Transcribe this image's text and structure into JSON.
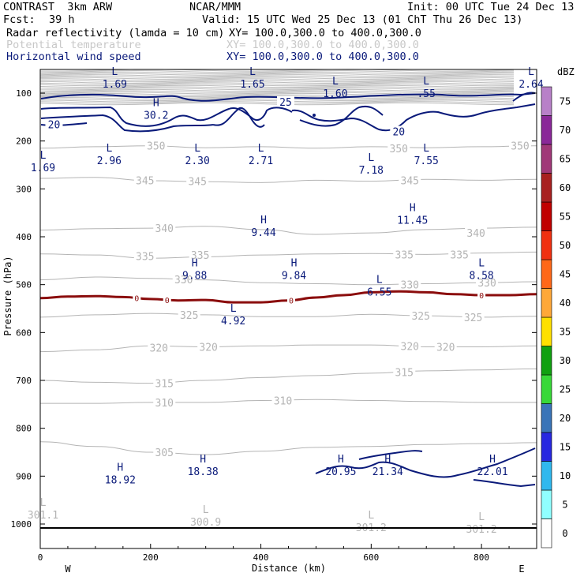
{
  "header": {
    "left1": "CONTRAST  3km ARW",
    "center1": "NCAR/MMM",
    "right1": "Init: 00 UTC Tue 24 Dec 13",
    "fcst_label": "Fcst:",
    "fcst_value": "39 h",
    "valid": "Valid: 15 UTC Wed 25 Dec 13 (01 ChT Thu 26 Dec 13)",
    "fields": [
      {
        "name": "Radar reflectivity (lamda = 10 cm)",
        "xy": "XY= 100.0,300.0 to 400.0,300.0",
        "color": "#000000"
      },
      {
        "name": "Potential temperature",
        "xy": "XY= 100.0,300.0 to 400.0,300.0",
        "color": "#c8c8c8"
      },
      {
        "name": "Horizontal wind speed",
        "xy": "XY= 100.0,300.0 to 400.0,300.0",
        "color": "#0a1a7a"
      }
    ]
  },
  "chart_data": {
    "type": "cross-section",
    "xlabel": "Distance (km)",
    "ylabel": "Pressure (hPa)",
    "xlim": [
      0,
      900
    ],
    "ylim": [
      1040,
      50
    ],
    "xticks": [
      0,
      200,
      400,
      600,
      800
    ],
    "yticks": [
      100,
      200,
      300,
      400,
      500,
      600,
      700,
      800,
      900,
      1000
    ],
    "x_end_labels": {
      "left": "W",
      "right": "E"
    },
    "colorbar": {
      "unit": "dBZ",
      "levels": [
        0,
        5,
        10,
        15,
        20,
        25,
        30,
        35,
        40,
        45,
        50,
        55,
        60,
        65,
        70,
        75
      ],
      "colors": [
        "#ffffff",
        "#90ffff",
        "#30b8ee",
        "#2828e0",
        "#3a74b8",
        "#38d838",
        "#10a010",
        "#ffe000",
        "#ffa838",
        "#ff6818",
        "#f03010",
        "#c00000",
        "#a82020",
        "#a03878",
        "#8a2898",
        "#b880c8"
      ]
    },
    "theta_contours": [
      {
        "value": 350,
        "points": [
          [
            0,
            215
          ],
          [
            100,
            212
          ],
          [
            200,
            210
          ],
          [
            300,
            214
          ],
          [
            400,
            212
          ],
          [
            500,
            215
          ],
          [
            600,
            212
          ],
          [
            700,
            214
          ],
          [
            800,
            212
          ],
          [
            900,
            210
          ]
        ],
        "labels": [
          {
            "x": 210,
            "p": 210,
            "text": "350"
          },
          {
            "x": 650,
            "p": 215,
            "text": "350"
          },
          {
            "x": 870,
            "p": 210,
            "text": "350"
          }
        ]
      },
      {
        "value": 345,
        "points": [
          [
            0,
            278
          ],
          [
            100,
            276
          ],
          [
            200,
            283
          ],
          [
            300,
            285
          ],
          [
            400,
            287
          ],
          [
            500,
            282
          ],
          [
            600,
            284
          ],
          [
            700,
            280
          ],
          [
            800,
            282
          ],
          [
            900,
            280
          ]
        ],
        "labels": [
          {
            "x": 190,
            "p": 282,
            "text": "345"
          },
          {
            "x": 285,
            "p": 284,
            "text": "345"
          },
          {
            "x": 670,
            "p": 282,
            "text": "345"
          }
        ]
      },
      {
        "value": 340,
        "points": [
          [
            0,
            386
          ],
          [
            100,
            383
          ],
          [
            200,
            382
          ],
          [
            300,
            378
          ],
          [
            400,
            385
          ],
          [
            500,
            395
          ],
          [
            600,
            392
          ],
          [
            700,
            385
          ],
          [
            800,
            382
          ],
          [
            900,
            380
          ]
        ],
        "labels": [
          {
            "x": 225,
            "p": 382,
            "text": "340"
          },
          {
            "x": 790,
            "p": 392,
            "text": "340"
          }
        ]
      },
      {
        "value": 335,
        "points": [
          [
            0,
            436
          ],
          [
            100,
            438
          ],
          [
            200,
            445
          ],
          [
            300,
            442
          ],
          [
            400,
            438
          ],
          [
            500,
            436
          ],
          [
            600,
            435
          ],
          [
            700,
            437
          ],
          [
            800,
            434
          ],
          [
            900,
            432
          ]
        ],
        "labels": [
          {
            "x": 190,
            "p": 440,
            "text": "335"
          },
          {
            "x": 290,
            "p": 438,
            "text": "335"
          },
          {
            "x": 660,
            "p": 437,
            "text": "335"
          },
          {
            "x": 760,
            "p": 437,
            "text": "335"
          }
        ]
      },
      {
        "value": 330,
        "points": [
          [
            0,
            490
          ],
          [
            100,
            484
          ],
          [
            200,
            487
          ],
          [
            300,
            490
          ],
          [
            400,
            496
          ],
          [
            500,
            498
          ],
          [
            600,
            500
          ],
          [
            700,
            498
          ],
          [
            800,
            496
          ],
          [
            900,
            494
          ]
        ],
        "labels": [
          {
            "x": 260,
            "p": 489,
            "text": "330"
          },
          {
            "x": 670,
            "p": 500,
            "text": "330"
          },
          {
            "x": 810,
            "p": 496,
            "text": "330"
          }
        ]
      },
      {
        "value": 325,
        "points": [
          [
            0,
            568
          ],
          [
            100,
            563
          ],
          [
            200,
            560
          ],
          [
            300,
            563
          ],
          [
            400,
            567
          ],
          [
            500,
            567
          ],
          [
            600,
            562
          ],
          [
            700,
            565
          ],
          [
            800,
            568
          ],
          [
            900,
            566
          ]
        ],
        "labels": [
          {
            "x": 270,
            "p": 563,
            "text": "325"
          },
          {
            "x": 690,
            "p": 565,
            "text": "325"
          },
          {
            "x": 785,
            "p": 568,
            "text": "325"
          }
        ]
      },
      {
        "value": 320,
        "points": [
          [
            0,
            640
          ],
          [
            100,
            636
          ],
          [
            200,
            628
          ],
          [
            300,
            630
          ],
          [
            400,
            628
          ],
          [
            500,
            626
          ],
          [
            600,
            626
          ],
          [
            700,
            630
          ],
          [
            800,
            630
          ],
          [
            900,
            628
          ]
        ],
        "labels": [
          {
            "x": 215,
            "p": 632,
            "text": "320"
          },
          {
            "x": 305,
            "p": 630,
            "text": "320"
          },
          {
            "x": 670,
            "p": 628,
            "text": "320"
          },
          {
            "x": 735,
            "p": 630,
            "text": "320"
          }
        ]
      },
      {
        "value": 315,
        "points": [
          [
            0,
            700
          ],
          [
            100,
            704
          ],
          [
            200,
            706
          ],
          [
            300,
            700
          ],
          [
            400,
            694
          ],
          [
            500,
            690
          ],
          [
            600,
            685
          ],
          [
            700,
            680
          ],
          [
            800,
            678
          ],
          [
            900,
            676
          ]
        ],
        "labels": [
          {
            "x": 225,
            "p": 706,
            "text": "315"
          },
          {
            "x": 660,
            "p": 683,
            "text": "315"
          }
        ]
      },
      {
        "value": 310,
        "points": [
          [
            0,
            748
          ],
          [
            100,
            748
          ],
          [
            200,
            746
          ],
          [
            300,
            746
          ],
          [
            400,
            742
          ],
          [
            500,
            740
          ],
          [
            600,
            742
          ],
          [
            700,
            744
          ],
          [
            800,
            746
          ],
          [
            900,
            746
          ]
        ],
        "labels": [
          {
            "x": 225,
            "p": 746,
            "text": "310"
          },
          {
            "x": 440,
            "p": 742,
            "text": "310"
          }
        ]
      },
      {
        "value": 305,
        "points": [
          [
            0,
            828
          ],
          [
            100,
            838
          ],
          [
            200,
            850
          ],
          [
            300,
            855
          ],
          [
            400,
            848
          ],
          [
            500,
            840
          ],
          [
            600,
            838
          ],
          [
            700,
            834
          ],
          [
            800,
            832
          ],
          [
            900,
            830
          ]
        ],
        "labels": [
          {
            "x": 225,
            "p": 850,
            "text": "305"
          }
        ]
      }
    ],
    "theta_extrema": [
      {
        "kind": "L",
        "value": "301.1",
        "x": 5,
        "p": 975
      },
      {
        "kind": "L",
        "value": "300.9",
        "x": 300,
        "p": 990
      },
      {
        "kind": "L",
        "value": "301.2",
        "x": 600,
        "p": 1002
      },
      {
        "kind": "L",
        "value": "301.2",
        "x": 800,
        "p": 1005
      }
    ],
    "wind_labels": [
      {
        "value": 25,
        "x": 445,
        "p": 118
      },
      {
        "value": 20,
        "x": 25,
        "p": 165
      },
      {
        "value": 20,
        "x": 650,
        "p": 180
      }
    ],
    "wind_extrema": [
      {
        "kind": "L",
        "value": "1.69",
        "x": 135,
        "p": 75
      },
      {
        "kind": "L",
        "value": "1.65",
        "x": 385,
        "p": 75
      },
      {
        "kind": "L",
        "value": "1.60",
        "x": 535,
        "p": 95
      },
      {
        "kind": "L",
        "value": ".55",
        "x": 700,
        "p": 95
      },
      {
        "kind": "L",
        "value": "2.64",
        "x": 890,
        "p": 75
      },
      {
        "kind": "H",
        "value": "30.2",
        "x": 210,
        "p": 140
      },
      {
        "kind": "L",
        "value": "1.69",
        "x": 5,
        "p": 250
      },
      {
        "kind": "L",
        "value": "2.96",
        "x": 125,
        "p": 235
      },
      {
        "kind": "L",
        "value": "2.30",
        "x": 285,
        "p": 235
      },
      {
        "kind": "L",
        "value": "2.71",
        "x": 400,
        "p": 235
      },
      {
        "kind": "L",
        "value": "7.18",
        "x": 600,
        "p": 255
      },
      {
        "kind": "L",
        "value": "7.55",
        "x": 700,
        "p": 235
      },
      {
        "kind": "H",
        "value": "11.45",
        "x": 675,
        "p": 360
      },
      {
        "kind": "H",
        "value": "9.44",
        "x": 405,
        "p": 385
      },
      {
        "kind": "H",
        "value": "9.88",
        "x": 280,
        "p": 475
      },
      {
        "kind": "H",
        "value": "9.84",
        "x": 460,
        "p": 475
      },
      {
        "kind": "L",
        "value": "8.58",
        "x": 800,
        "p": 475
      },
      {
        "kind": "L",
        "value": "6.55",
        "x": 615,
        "p": 510
      },
      {
        "kind": "L",
        "value": "4.92",
        "x": 350,
        "p": 570
      },
      {
        "kind": "H",
        "value": "18.92",
        "x": 145,
        "p": 902
      },
      {
        "kind": "H",
        "value": "18.38",
        "x": 295,
        "p": 885
      },
      {
        "kind": "H",
        "value": "20.95",
        "x": 545,
        "p": 885
      },
      {
        "kind": "H",
        "value": "21.34",
        "x": 630,
        "p": 885
      },
      {
        "kind": "H",
        "value": "22.01",
        "x": 820,
        "p": 885
      }
    ],
    "freezing_level": {
      "label": "0",
      "color": "#8b0d0d",
      "points": [
        [
          0,
          528
        ],
        [
          50,
          525
        ],
        [
          100,
          524
        ],
        [
          150,
          526
        ],
        [
          200,
          530
        ],
        [
          250,
          533
        ],
        [
          300,
          532
        ],
        [
          350,
          537
        ],
        [
          400,
          537
        ],
        [
          450,
          533
        ],
        [
          500,
          527
        ],
        [
          550,
          522
        ],
        [
          600,
          516
        ],
        [
          650,
          514
        ],
        [
          700,
          516
        ],
        [
          750,
          520
        ],
        [
          800,
          522
        ],
        [
          850,
          522
        ],
        [
          900,
          520
        ]
      ],
      "label_x": [
        175,
        230,
        455,
        800
      ]
    }
  }
}
